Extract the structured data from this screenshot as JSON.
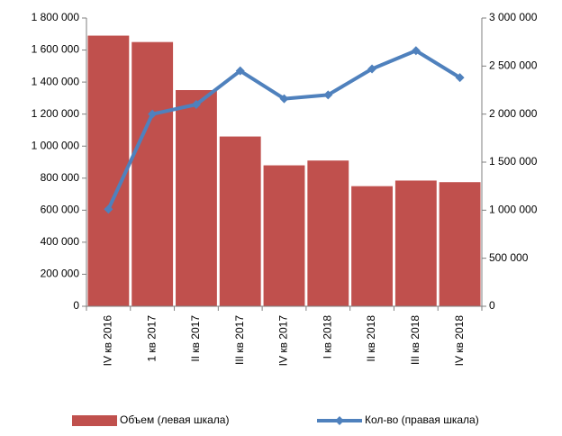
{
  "chart_data": {
    "type": "bar_line",
    "categories": [
      "IV кв 2016",
      "1 кв 2017",
      "II кв 2017",
      "III кв 2017",
      "IV кв 2017",
      "I кв 2018",
      "II кв 2018",
      "III кв 2018",
      "IV кв 2018"
    ],
    "series": [
      {
        "name": "Объем (левая шкала)",
        "color": "#c0504d",
        "type": "bar",
        "axis": "y",
        "values": [
          1690000,
          1650000,
          1350000,
          1060000,
          880000,
          910000,
          750000,
          785000,
          775000
        ]
      },
      {
        "name": "Кол-во (правая шкала)",
        "color": "#4f81bd",
        "type": "line",
        "axis": "y2",
        "values": [
          1010000,
          2000000,
          2100000,
          2450000,
          2160000,
          2200000,
          2470000,
          2660000,
          2380000
        ]
      }
    ],
    "ylim": [
      0,
      1800000
    ],
    "yticks": [
      0,
      {
        "value": 200000,
        "label": "200 000"
      },
      {
        "value": 400000,
        "label": "400 000"
      },
      {
        "value": 600000,
        "label": "600 000"
      },
      {
        "value": 800000,
        "label": "800 000"
      },
      {
        "value": 1000000,
        "label": "1 000 000"
      },
      {
        "value": 1200000,
        "label": "1 200 000"
      },
      {
        "value": 1400000,
        "label": "1 400 000"
      },
      {
        "value": 1600000,
        "label": "1 600 000"
      },
      {
        "value": 1800000,
        "label": "1 800 000"
      }
    ],
    "y2lim": [
      0,
      3000000
    ],
    "y2ticks": [
      0,
      {
        "value": 500000,
        "label": "500 000"
      },
      {
        "value": 1000000,
        "label": "1 000 000"
      },
      {
        "value": 1500000,
        "label": "1 500 000"
      },
      {
        "value": 2000000,
        "label": "2 000 000"
      },
      {
        "value": 2500000,
        "label": "2 500 000"
      },
      {
        "value": 3000000,
        "label": "3 000 000"
      }
    ],
    "legend": "bottom"
  }
}
